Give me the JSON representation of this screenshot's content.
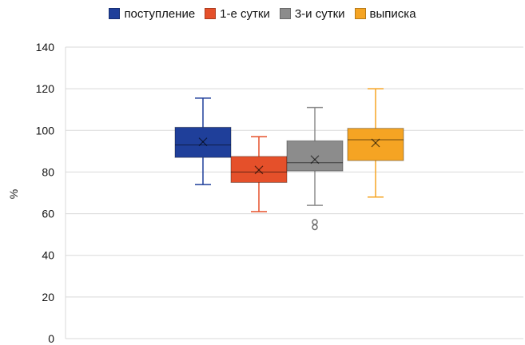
{
  "chart_data": {
    "type": "box",
    "ylabel": "%",
    "xlabel": "",
    "ylim": [
      0,
      140
    ],
    "yticks": [
      0,
      20,
      40,
      60,
      80,
      100,
      120,
      140
    ],
    "grid": true,
    "legend_position": "top",
    "series": [
      {
        "name": "поступление",
        "color": "#1f3f9a",
        "min": 74,
        "q1": 87,
        "median": 93,
        "q3": 101.5,
        "max": 115.5,
        "mean": 94.5,
        "outliers": []
      },
      {
        "name": "1-е сутки",
        "color": "#e5502a",
        "min": 61,
        "q1": 75,
        "median": 80,
        "q3": 87.5,
        "max": 97,
        "mean": 81,
        "outliers": []
      },
      {
        "name": "3-и сутки",
        "color": "#8c8c8c",
        "min": 64,
        "q1": 80.5,
        "median": 84.5,
        "q3": 95,
        "max": 111,
        "mean": 86,
        "outliers": [
          56,
          53.5
        ]
      },
      {
        "name": "выписка",
        "color": "#f5a423",
        "min": 68,
        "q1": 85.5,
        "median": 95.5,
        "q3": 101,
        "max": 120,
        "mean": 94,
        "outliers": []
      }
    ]
  }
}
